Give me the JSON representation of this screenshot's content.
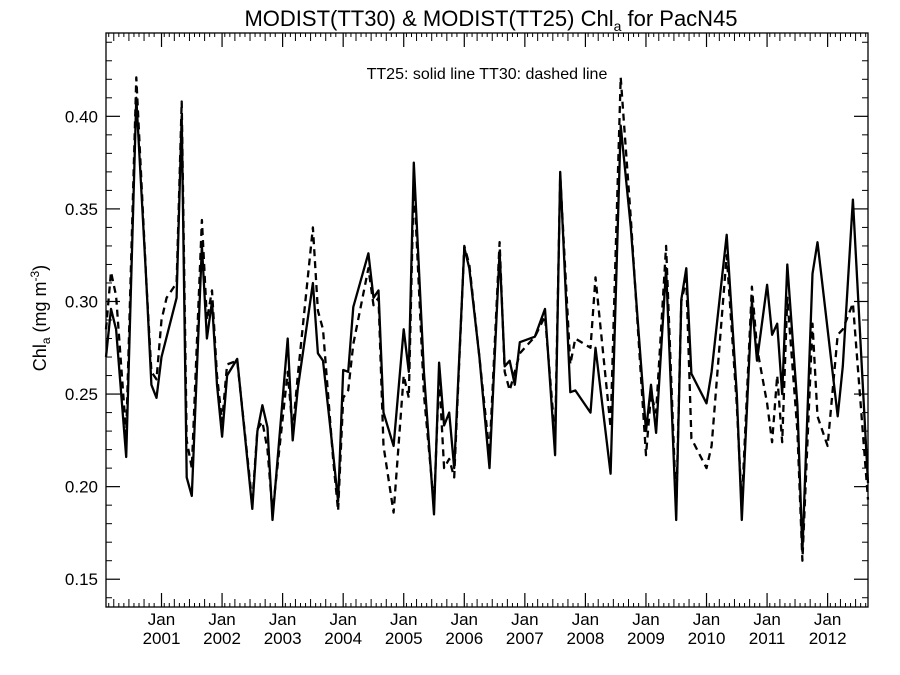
{
  "chart_data": {
    "type": "line",
    "title_main": "MODIST(TT30) & MODIST(TT25)  Chl",
    "title_sub": "a",
    "title_tail": " for PacN45",
    "ylabel_main": "Chl",
    "ylabel_sub": "a",
    "ylabel_units": " (mg m",
    "ylabel_sup": "-3",
    "ylabel_close": ")",
    "annotation": "TT25: solid line   TT30: dashed line",
    "ylim": [
      0.135,
      0.445
    ],
    "xlim": [
      "2000-02-15",
      "2012-09-15"
    ],
    "grid": false,
    "yticks": [
      0.15,
      0.2,
      0.25,
      0.3,
      0.35,
      0.4
    ],
    "ytick_labels": [
      "0.15",
      "0.20",
      "0.25",
      "0.30",
      "0.35",
      "0.40"
    ],
    "xticks": [
      {
        "date": "2001-01",
        "month": "Jan",
        "year": "2001"
      },
      {
        "date": "2002-01",
        "month": "Jan",
        "year": "2002"
      },
      {
        "date": "2003-01",
        "month": "Jan",
        "year": "2003"
      },
      {
        "date": "2004-01",
        "month": "Jan",
        "year": "2004"
      },
      {
        "date": "2005-01",
        "month": "Jan",
        "year": "2005"
      },
      {
        "date": "2006-01",
        "month": "Jan",
        "year": "2006"
      },
      {
        "date": "2007-01",
        "month": "Jan",
        "year": "2007"
      },
      {
        "date": "2008-01",
        "month": "Jan",
        "year": "2008"
      },
      {
        "date": "2009-01",
        "month": "Jan",
        "year": "2009"
      },
      {
        "date": "2010-01",
        "month": "Jan",
        "year": "2010"
      },
      {
        "date": "2011-01",
        "month": "Jan",
        "year": "2011"
      },
      {
        "date": "2012-01",
        "month": "Jan",
        "year": "2012"
      }
    ],
    "series": [
      {
        "name": "TT25",
        "style": "solid",
        "color": "#000000",
        "points": [
          [
            "2000-02",
            0.27
          ],
          [
            "2000-03",
            0.296
          ],
          [
            "2000-04",
            0.285
          ],
          [
            "2000-06",
            0.216
          ],
          [
            "2000-08",
            0.41
          ],
          [
            "2000-10",
            0.31
          ],
          [
            "2000-11",
            0.255
          ],
          [
            "2000-12",
            0.248
          ],
          [
            "2001-01",
            0.27
          ],
          [
            "2001-04",
            0.302
          ],
          [
            "2001-05",
            0.4
          ],
          [
            "2001-06",
            0.205
          ],
          [
            "2001-07",
            0.195
          ],
          [
            "2001-09",
            0.33
          ],
          [
            "2001-10",
            0.28
          ],
          [
            "2001-11",
            0.3
          ],
          [
            "2001-12",
            0.255
          ],
          [
            "2002-01",
            0.227
          ],
          [
            "2002-02",
            0.26
          ],
          [
            "2002-04",
            0.269
          ],
          [
            "2002-07",
            0.188
          ],
          [
            "2002-08",
            0.23
          ],
          [
            "2002-09",
            0.244
          ],
          [
            "2002-10",
            0.232
          ],
          [
            "2002-11",
            0.182
          ],
          [
            "2003-02",
            0.28
          ],
          [
            "2003-03",
            0.225
          ],
          [
            "2003-04",
            0.253
          ],
          [
            "2003-07",
            0.31
          ],
          [
            "2003-08",
            0.272
          ],
          [
            "2003-09",
            0.268
          ],
          [
            "2003-11",
            0.218
          ],
          [
            "2003-12",
            0.192
          ],
          [
            "2004-01",
            0.263
          ],
          [
            "2004-02",
            0.262
          ],
          [
            "2004-03",
            0.297
          ],
          [
            "2004-06",
            0.326
          ],
          [
            "2004-07",
            0.302
          ],
          [
            "2004-08",
            0.306
          ],
          [
            "2004-09",
            0.24
          ],
          [
            "2004-11",
            0.222
          ],
          [
            "2005-01",
            0.285
          ],
          [
            "2005-02",
            0.262
          ],
          [
            "2005-03",
            0.375
          ],
          [
            "2005-05",
            0.262
          ],
          [
            "2005-07",
            0.185
          ],
          [
            "2005-08",
            0.267
          ],
          [
            "2005-09",
            0.233
          ],
          [
            "2005-10",
            0.24
          ],
          [
            "2005-11",
            0.21
          ],
          [
            "2006-01",
            0.329
          ],
          [
            "2006-02",
            0.318
          ],
          [
            "2006-04",
            0.27
          ],
          [
            "2006-06",
            0.21
          ],
          [
            "2006-08",
            0.327
          ],
          [
            "2006-09",
            0.265
          ],
          [
            "2006-10",
            0.268
          ],
          [
            "2006-11",
            0.255
          ],
          [
            "2006-12",
            0.278
          ],
          [
            "2007-03",
            0.281
          ],
          [
            "2007-05",
            0.296
          ],
          [
            "2007-07",
            0.217
          ],
          [
            "2007-08",
            0.37
          ],
          [
            "2007-10",
            0.251
          ],
          [
            "2007-11",
            0.252
          ],
          [
            "2008-02",
            0.24
          ],
          [
            "2008-03",
            0.275
          ],
          [
            "2008-06",
            0.207
          ],
          [
            "2008-08",
            0.395
          ],
          [
            "2008-10",
            0.34
          ],
          [
            "2009-01",
            0.23
          ],
          [
            "2009-02",
            0.255
          ],
          [
            "2009-03",
            0.229
          ],
          [
            "2009-05",
            0.318
          ],
          [
            "2009-07",
            0.182
          ],
          [
            "2009-08",
            0.301
          ],
          [
            "2009-09",
            0.318
          ],
          [
            "2009-10",
            0.261
          ],
          [
            "2010-01",
            0.245
          ],
          [
            "2010-02",
            0.262
          ],
          [
            "2010-05",
            0.336
          ],
          [
            "2010-07",
            0.25
          ],
          [
            "2010-08",
            0.182
          ],
          [
            "2010-10",
            0.3
          ],
          [
            "2010-11",
            0.268
          ],
          [
            "2011-01",
            0.309
          ],
          [
            "2011-02",
            0.282
          ],
          [
            "2011-03",
            0.288
          ],
          [
            "2011-04",
            0.25
          ],
          [
            "2011-05",
            0.32
          ],
          [
            "2011-07",
            0.244
          ],
          [
            "2011-08",
            0.165
          ],
          [
            "2011-10",
            0.315
          ],
          [
            "2011-11",
            0.332
          ],
          [
            "2012-01",
            0.285
          ],
          [
            "2012-03",
            0.238
          ],
          [
            "2012-04",
            0.265
          ],
          [
            "2012-06",
            0.355
          ],
          [
            "2012-09",
            0.202
          ]
        ]
      },
      {
        "name": "TT30",
        "style": "dashed",
        "color": "#000000",
        "points": [
          [
            "2000-02",
            0.285
          ],
          [
            "2000-03",
            0.316
          ],
          [
            "2000-04",
            0.303
          ],
          [
            "2000-06",
            0.228
          ],
          [
            "2000-08",
            0.421
          ],
          [
            "2000-10",
            0.31
          ],
          [
            "2000-11",
            0.262
          ],
          [
            "2000-12",
            0.258
          ],
          [
            "2001-01",
            0.29
          ],
          [
            "2001-02",
            0.302
          ],
          [
            "2001-04",
            0.31
          ],
          [
            "2001-05",
            0.408
          ],
          [
            "2001-06",
            0.225
          ],
          [
            "2001-07",
            0.21
          ],
          [
            "2001-09",
            0.344
          ],
          [
            "2001-10",
            0.29
          ],
          [
            "2001-11",
            0.306
          ],
          [
            "2001-12",
            0.26
          ],
          [
            "2002-01",
            0.235
          ],
          [
            "2002-02",
            0.266
          ],
          [
            "2002-04",
            0.268
          ],
          [
            "2002-07",
            0.191
          ],
          [
            "2002-08",
            0.231
          ],
          [
            "2002-09",
            0.235
          ],
          [
            "2002-10",
            0.22
          ],
          [
            "2002-11",
            0.186
          ],
          [
            "2003-02",
            0.262
          ],
          [
            "2003-03",
            0.23
          ],
          [
            "2003-04",
            0.26
          ],
          [
            "2003-07",
            0.34
          ],
          [
            "2003-08",
            0.295
          ],
          [
            "2003-09",
            0.285
          ],
          [
            "2003-11",
            0.215
          ],
          [
            "2003-12",
            0.187
          ],
          [
            "2004-01",
            0.248
          ],
          [
            "2004-02",
            0.252
          ],
          [
            "2004-03",
            0.277
          ],
          [
            "2004-06",
            0.318
          ],
          [
            "2004-07",
            0.298
          ],
          [
            "2004-08",
            0.302
          ],
          [
            "2004-09",
            0.222
          ],
          [
            "2004-11",
            0.186
          ],
          [
            "2005-01",
            0.26
          ],
          [
            "2005-02",
            0.248
          ],
          [
            "2005-03",
            0.366
          ],
          [
            "2005-05",
            0.25
          ],
          [
            "2005-07",
            0.19
          ],
          [
            "2005-08",
            0.26
          ],
          [
            "2005-09",
            0.21
          ],
          [
            "2005-10",
            0.215
          ],
          [
            "2005-11",
            0.205
          ],
          [
            "2006-01",
            0.33
          ],
          [
            "2006-02",
            0.32
          ],
          [
            "2006-04",
            0.27
          ],
          [
            "2006-06",
            0.218
          ],
          [
            "2006-08",
            0.332
          ],
          [
            "2006-09",
            0.262
          ],
          [
            "2006-10",
            0.252
          ],
          [
            "2006-11",
            0.262
          ],
          [
            "2006-12",
            0.272
          ],
          [
            "2007-03",
            0.281
          ],
          [
            "2007-05",
            0.292
          ],
          [
            "2007-07",
            0.226
          ],
          [
            "2007-08",
            0.368
          ],
          [
            "2007-10",
            0.266
          ],
          [
            "2007-11",
            0.28
          ],
          [
            "2008-02",
            0.275
          ],
          [
            "2008-03",
            0.313
          ],
          [
            "2008-06",
            0.232
          ],
          [
            "2008-08",
            0.421
          ],
          [
            "2008-10",
            0.345
          ],
          [
            "2009-01",
            0.217
          ],
          [
            "2009-02",
            0.25
          ],
          [
            "2009-03",
            0.24
          ],
          [
            "2009-05",
            0.33
          ],
          [
            "2009-07",
            0.188
          ],
          [
            "2009-08",
            0.3
          ],
          [
            "2009-09",
            0.312
          ],
          [
            "2009-10",
            0.226
          ],
          [
            "2010-01",
            0.21
          ],
          [
            "2010-02",
            0.222
          ],
          [
            "2010-05",
            0.325
          ],
          [
            "2010-07",
            0.244
          ],
          [
            "2010-08",
            0.19
          ],
          [
            "2010-10",
            0.308
          ],
          [
            "2010-11",
            0.275
          ],
          [
            "2011-01",
            0.245
          ],
          [
            "2011-02",
            0.224
          ],
          [
            "2011-03",
            0.26
          ],
          [
            "2011-04",
            0.224
          ],
          [
            "2011-05",
            0.302
          ],
          [
            "2011-07",
            0.23
          ],
          [
            "2011-08",
            0.16
          ],
          [
            "2011-10",
            0.288
          ],
          [
            "2011-11",
            0.238
          ],
          [
            "2012-01",
            0.222
          ],
          [
            "2012-03",
            0.282
          ],
          [
            "2012-04",
            0.285
          ],
          [
            "2012-06",
            0.299
          ],
          [
            "2012-09",
            0.193
          ]
        ]
      }
    ]
  }
}
